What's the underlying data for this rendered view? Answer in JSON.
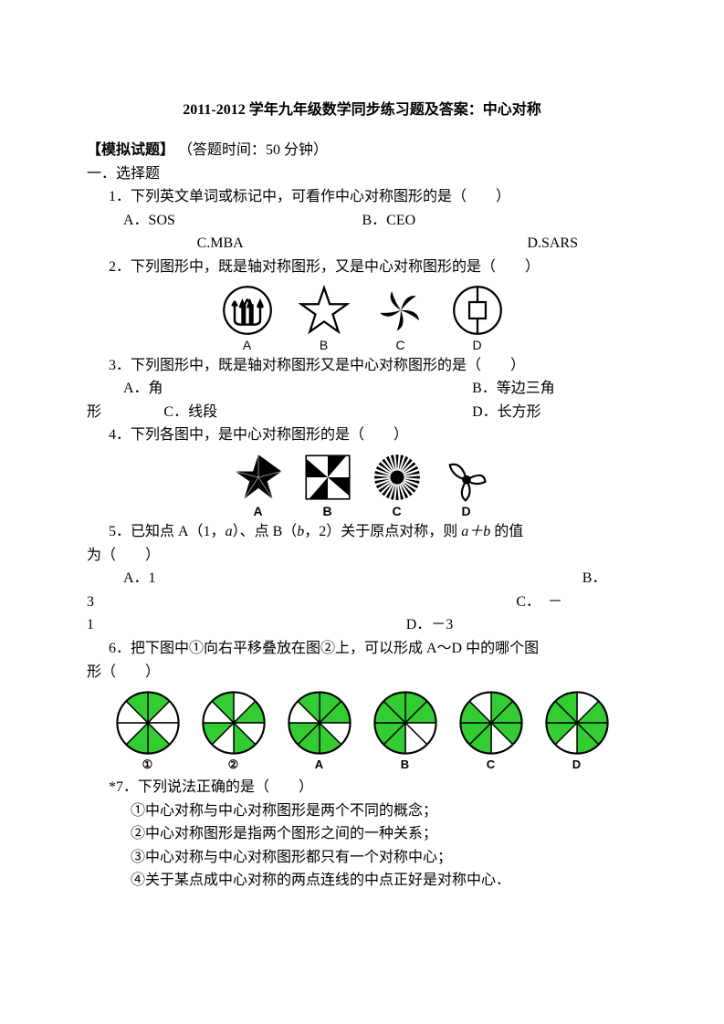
{
  "title": "2011-2012 学年九年级数学同步练习题及答案：中心对称",
  "header": {
    "simLabel": "【模拟试题】",
    "timeLabel": "（答题时间：50 分钟）"
  },
  "sec1": "一．选择题",
  "q1": {
    "stem": "1．下列英文单词或标记中，可看作中心对称图形的是（　　）",
    "a": "A．SOS",
    "b": "B．CEO",
    "c": "C.MBA",
    "d": "D.SARS"
  },
  "q2": {
    "stem": "2．下列图形中，既是轴对称图形，又是中心对称图形的是（　　）",
    "labels": [
      "A",
      "B",
      "C",
      "D"
    ]
  },
  "q3": {
    "stem": "3．下列图形中，既是轴对称图形又是中心对称图形的是（　　）",
    "a": "A．角",
    "b_p1": "B．等边三角",
    "b_p2": "形",
    "c": "C．线段",
    "d": "D．长方形"
  },
  "q4": {
    "stem": "4．下列各图中，是中心对称图形的是（　　）",
    "labels": [
      "A",
      "B",
      "C",
      "D"
    ]
  },
  "q5": {
    "stem_p1": "5．已知点 A（1，",
    "a_var": "a",
    "stem_p2": "）、点 B（",
    "b_var": "b",
    "stem_p3": "，2）关于原点对称，则 ",
    "ab": "a＋b",
    "stem_p4": " 的值",
    "line2": "为（　　）",
    "optA": "A．1",
    "optB": "B．",
    "l3": "3",
    "optC": "C．　－",
    "l4": "1",
    "optD": "D．－3"
  },
  "q6": {
    "stem_p1": "6．把下图中①向右平移叠放在图②上，可以形成 A～D 中的哪个图",
    "stem_p2": "形（　　）",
    "labels": [
      "①",
      "②",
      "A",
      "B",
      "C",
      "D"
    ],
    "fill_color": "#33cc33",
    "border_color": "#000000",
    "patterns": [
      [
        1,
        0,
        0,
        1,
        1,
        0,
        0,
        1
      ],
      [
        0,
        1,
        0,
        1,
        0,
        1,
        0,
        1
      ],
      [
        1,
        1,
        0,
        1,
        1,
        1,
        0,
        1
      ],
      [
        1,
        1,
        0,
        0,
        1,
        1,
        1,
        1
      ],
      [
        1,
        1,
        1,
        0,
        1,
        1,
        1,
        0
      ],
      [
        0,
        1,
        1,
        1,
        0,
        1,
        1,
        1
      ]
    ]
  },
  "q7": {
    "stem": "*7．下列说法正确的是（　　）",
    "s1": "①中心对称与中心对称图形是两个不同的概念；",
    "s2": "②中心对称图形是指两个图形之间的一种关系；",
    "s3": "③中心对称与中心对称图形都只有一个对称中心；",
    "s4": "④关于某点成中心对称的两点连线的中点正好是对称中心．"
  }
}
